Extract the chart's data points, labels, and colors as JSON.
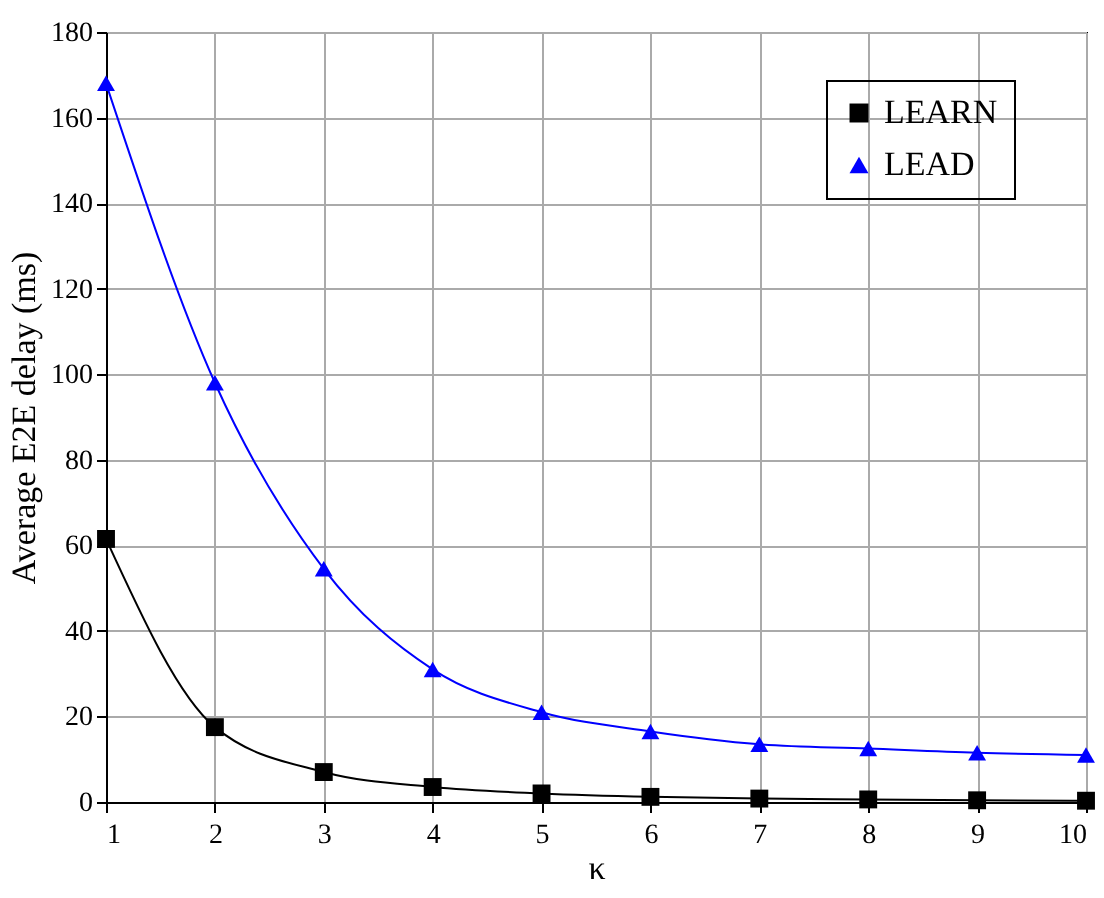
{
  "chart_data": {
    "type": "line",
    "xlabel": "κ",
    "ylabel": "Average E2E delay (ms)",
    "x": [
      1,
      2,
      3,
      4,
      5,
      6,
      7,
      8,
      9,
      10
    ],
    "xlim": [
      1,
      10
    ],
    "xticks": [
      1,
      2,
      3,
      4,
      5,
      6,
      7,
      8,
      9,
      10
    ],
    "ylim": [
      0,
      180
    ],
    "yticks": [
      0,
      20,
      40,
      60,
      80,
      100,
      120,
      140,
      160,
      180
    ],
    "grid": true,
    "legend": "top right",
    "series": [
      {
        "name": "LEARN",
        "color": "#000000",
        "marker": "square",
        "values": [
          61.5,
          17.5,
          7,
          3.5,
          2,
          1.2,
          0.8,
          0.6,
          0.4,
          0.3
        ]
      },
      {
        "name": "LEAD",
        "color": "#0000ff",
        "marker": "triangle",
        "values": [
          168,
          98,
          54.5,
          31,
          21,
          16.5,
          13.5,
          12.5,
          11.5,
          11
        ]
      }
    ]
  }
}
